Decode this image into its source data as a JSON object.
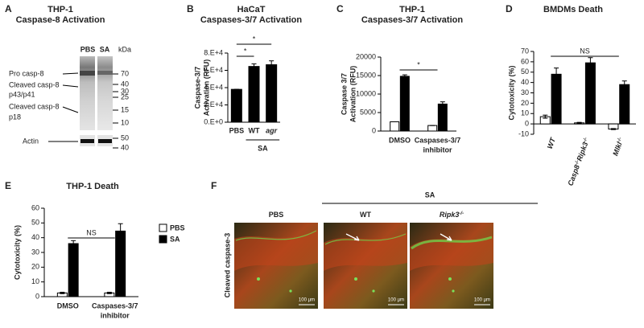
{
  "panel_labels": [
    "A",
    "B",
    "C",
    "D",
    "E",
    "F"
  ],
  "blot": {
    "title": [
      "THP-1",
      "Caspase-8 Activation"
    ],
    "lanes": [
      "PBS",
      "SA"
    ],
    "unit": "kDa",
    "bands": [
      [
        "Pro casp-8"
      ],
      [
        "Cleaved casp-8",
        "p43/p41"
      ],
      [
        "Cleaved casp-8",
        "p18"
      ]
    ],
    "loading": "Actin",
    "markers": [
      70,
      40,
      30,
      25,
      15,
      10
    ],
    "loading_markers": [
      50,
      40
    ]
  },
  "chart_data": [
    {
      "type": "bar",
      "title": [
        "HaCaT",
        "Caspases-3/7 Activation"
      ],
      "y_label": [
        "Caspase-3/7",
        "Activation (RFU)"
      ],
      "categories": [
        "PBS",
        "WT",
        "agr"
      ],
      "values": [
        38000,
        64500,
        66500
      ],
      "errors": [
        0,
        3000,
        4500
      ],
      "color": "#000000",
      "ylim": [
        0,
        80000
      ],
      "yticks": [
        {
          "value": 0,
          "label": "0.E+0"
        },
        {
          "value": 20000,
          "label": "2.E+4"
        },
        {
          "value": 40000,
          "label": "4.E+4"
        },
        {
          "value": 60000,
          "label": "6.E+4"
        },
        {
          "value": 80000,
          "label": "8.E+4"
        }
      ],
      "group_label": "SA",
      "annotations": [
        "*",
        "*"
      ]
    },
    {
      "type": "bar",
      "title": [
        "THP-1",
        "Caspases-3/7 Activation"
      ],
      "y_label": [
        "Caspase 3/7",
        "Activation (RFU)"
      ],
      "categories": [
        [
          "DMSO"
        ],
        [
          "Caspases-3/7",
          "inhibitor"
        ]
      ],
      "series": [
        {
          "color": "#ffffff",
          "values": [
            2500,
            1500
          ],
          "errors": [
            0,
            0
          ]
        },
        {
          "color": "#000000",
          "values": [
            14800,
            7300
          ],
          "errors": [
            400,
            600
          ]
        }
      ],
      "ylim": [
        0,
        20000
      ],
      "yticks": [
        0,
        5000,
        10000,
        15000,
        20000
      ],
      "annotations": [
        "*"
      ]
    },
    {
      "type": "bar",
      "title": [
        "BMDMs Death"
      ],
      "y_label": "Cytotoxicity (%)",
      "categories": [
        [
          "WT"
        ],
        [
          "Casp8",
          "-/-",
          "Ripk3",
          "-/-"
        ],
        [
          "Mlkl",
          "-/-"
        ]
      ],
      "series": [
        {
          "color": "#ffffff",
          "values": [
            7,
            1,
            -5
          ],
          "errors": [
            1.5,
            0.5,
            0.5
          ]
        },
        {
          "color": "#000000",
          "values": [
            48,
            59,
            38
          ],
          "errors": [
            6,
            5,
            3.5
          ]
        }
      ],
      "ylim": [
        -10,
        70
      ],
      "yticks": [
        -10,
        0,
        10,
        20,
        30,
        40,
        50,
        60,
        70
      ],
      "annotations": [
        "NS"
      ]
    },
    {
      "type": "bar",
      "title": [
        "THP-1 Death"
      ],
      "y_label": "Cytotoxicity (%)",
      "categories": [
        [
          "DMSO"
        ],
        [
          "Caspases-3/7",
          "inhibitor"
        ]
      ],
      "series": [
        {
          "name": "PBS",
          "color": "#ffffff",
          "values": [
            2.5,
            2.5
          ],
          "errors": [
            0.5,
            0.5
          ]
        },
        {
          "name": "SA",
          "color": "#000000",
          "values": [
            36,
            44.5
          ],
          "errors": [
            2,
            5
          ]
        }
      ],
      "ylim": [
        0,
        60
      ],
      "yticks": [
        0,
        10,
        20,
        30,
        40,
        50,
        60
      ],
      "annotations": [
        "NS"
      ]
    }
  ],
  "micrographs": {
    "group": "SA",
    "row_label": "Cleaved caspase-3",
    "columns": [
      [
        "PBS"
      ],
      [
        "WT"
      ],
      [
        "Ripk3",
        "-/-"
      ]
    ],
    "scale_bar": [
      "100 µm",
      "100 µm",
      "100 µm"
    ]
  }
}
